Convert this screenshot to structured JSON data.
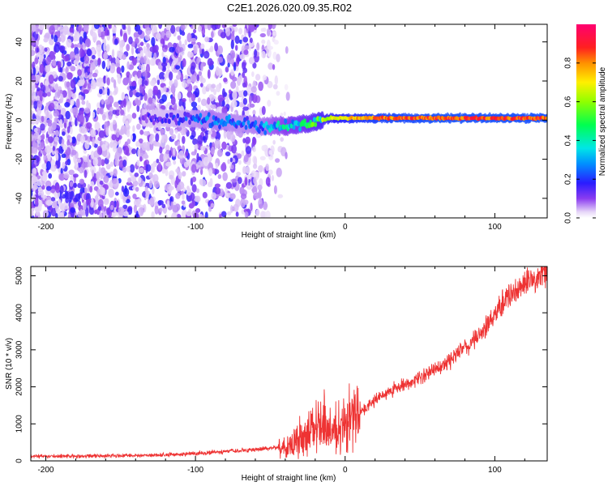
{
  "figure": {
    "title": "C2E1.2026.020.09.35.R02"
  },
  "chart_data": [
    {
      "type": "heatmap",
      "xlabel": "Height of straight line (km)",
      "ylabel": "Frequency (Hz)",
      "xlim": [
        -210,
        135
      ],
      "ylim": [
        -50,
        49
      ],
      "xticks": [
        -200,
        -100,
        0,
        100
      ],
      "yticks": [
        -40,
        -20,
        0,
        20,
        40
      ],
      "xtick_labels": [
        "-200",
        "-100",
        "0",
        "100"
      ],
      "ytick_labels": [
        "-40",
        "-20",
        "0",
        "20",
        "40"
      ],
      "colorbar": {
        "label": "Normalized spectral amplitude",
        "range": [
          0,
          1
        ],
        "ticks": [
          0.0,
          0.2,
          0.4,
          0.6,
          0.8
        ],
        "tick_labels": [
          "0.0",
          "0.2",
          "0.4",
          "0.6",
          "0.8"
        ]
      },
      "ridge": {
        "description_points_x": [
          -130,
          -110,
          -90,
          -70,
          -55,
          -40,
          -25,
          -15,
          -10,
          0,
          20,
          60,
          100,
          135
        ],
        "frequency_hz": [
          1,
          1,
          0,
          -2,
          -3,
          -3,
          -2,
          0,
          1,
          1,
          1,
          1,
          1,
          1
        ],
        "amplitude": [
          0.15,
          0.2,
          0.3,
          0.25,
          0.3,
          0.4,
          0.5,
          0.6,
          0.7,
          0.75,
          0.85,
          0.9,
          0.9,
          0.9
        ]
      },
      "noise_extent_x": [
        -210,
        -50
      ]
    },
    {
      "type": "line",
      "xlabel": "Height of straight line (km)",
      "ylabel": "SNR (10 * v/v)",
      "xlim": [
        -210,
        135
      ],
      "ylim": [
        0,
        5250
      ],
      "xticks": [
        -200,
        -100,
        0,
        100
      ],
      "yticks": [
        0,
        1000,
        2000,
        3000,
        4000,
        5000
      ],
      "xtick_labels": [
        "-200",
        "-100",
        "0",
        "100"
      ],
      "ytick_labels": [
        "0",
        "1000",
        "2000",
        "3000",
        "4000",
        "5000"
      ],
      "color": "#ee3333",
      "series": [
        {
          "name": "SNR",
          "x": [
            -210,
            -180,
            -150,
            -120,
            -100,
            -80,
            -60,
            -40,
            -30,
            -20,
            -15,
            -10,
            -5,
            0,
            10,
            20,
            30,
            40,
            50,
            60,
            70,
            80,
            90,
            100,
            110,
            120,
            135
          ],
          "values": [
            120,
            130,
            140,
            160,
            200,
            250,
            300,
            400,
            600,
            900,
            1000,
            800,
            900,
            1000,
            1300,
            1650,
            1900,
            2050,
            2250,
            2450,
            2700,
            3050,
            3450,
            3950,
            4500,
            4800,
            5150
          ]
        }
      ],
      "spikes": [
        {
          "x": -25,
          "y": 1500
        },
        {
          "x": -14,
          "y": 2150
        },
        {
          "x": 5,
          "y": 1900
        }
      ]
    }
  ]
}
